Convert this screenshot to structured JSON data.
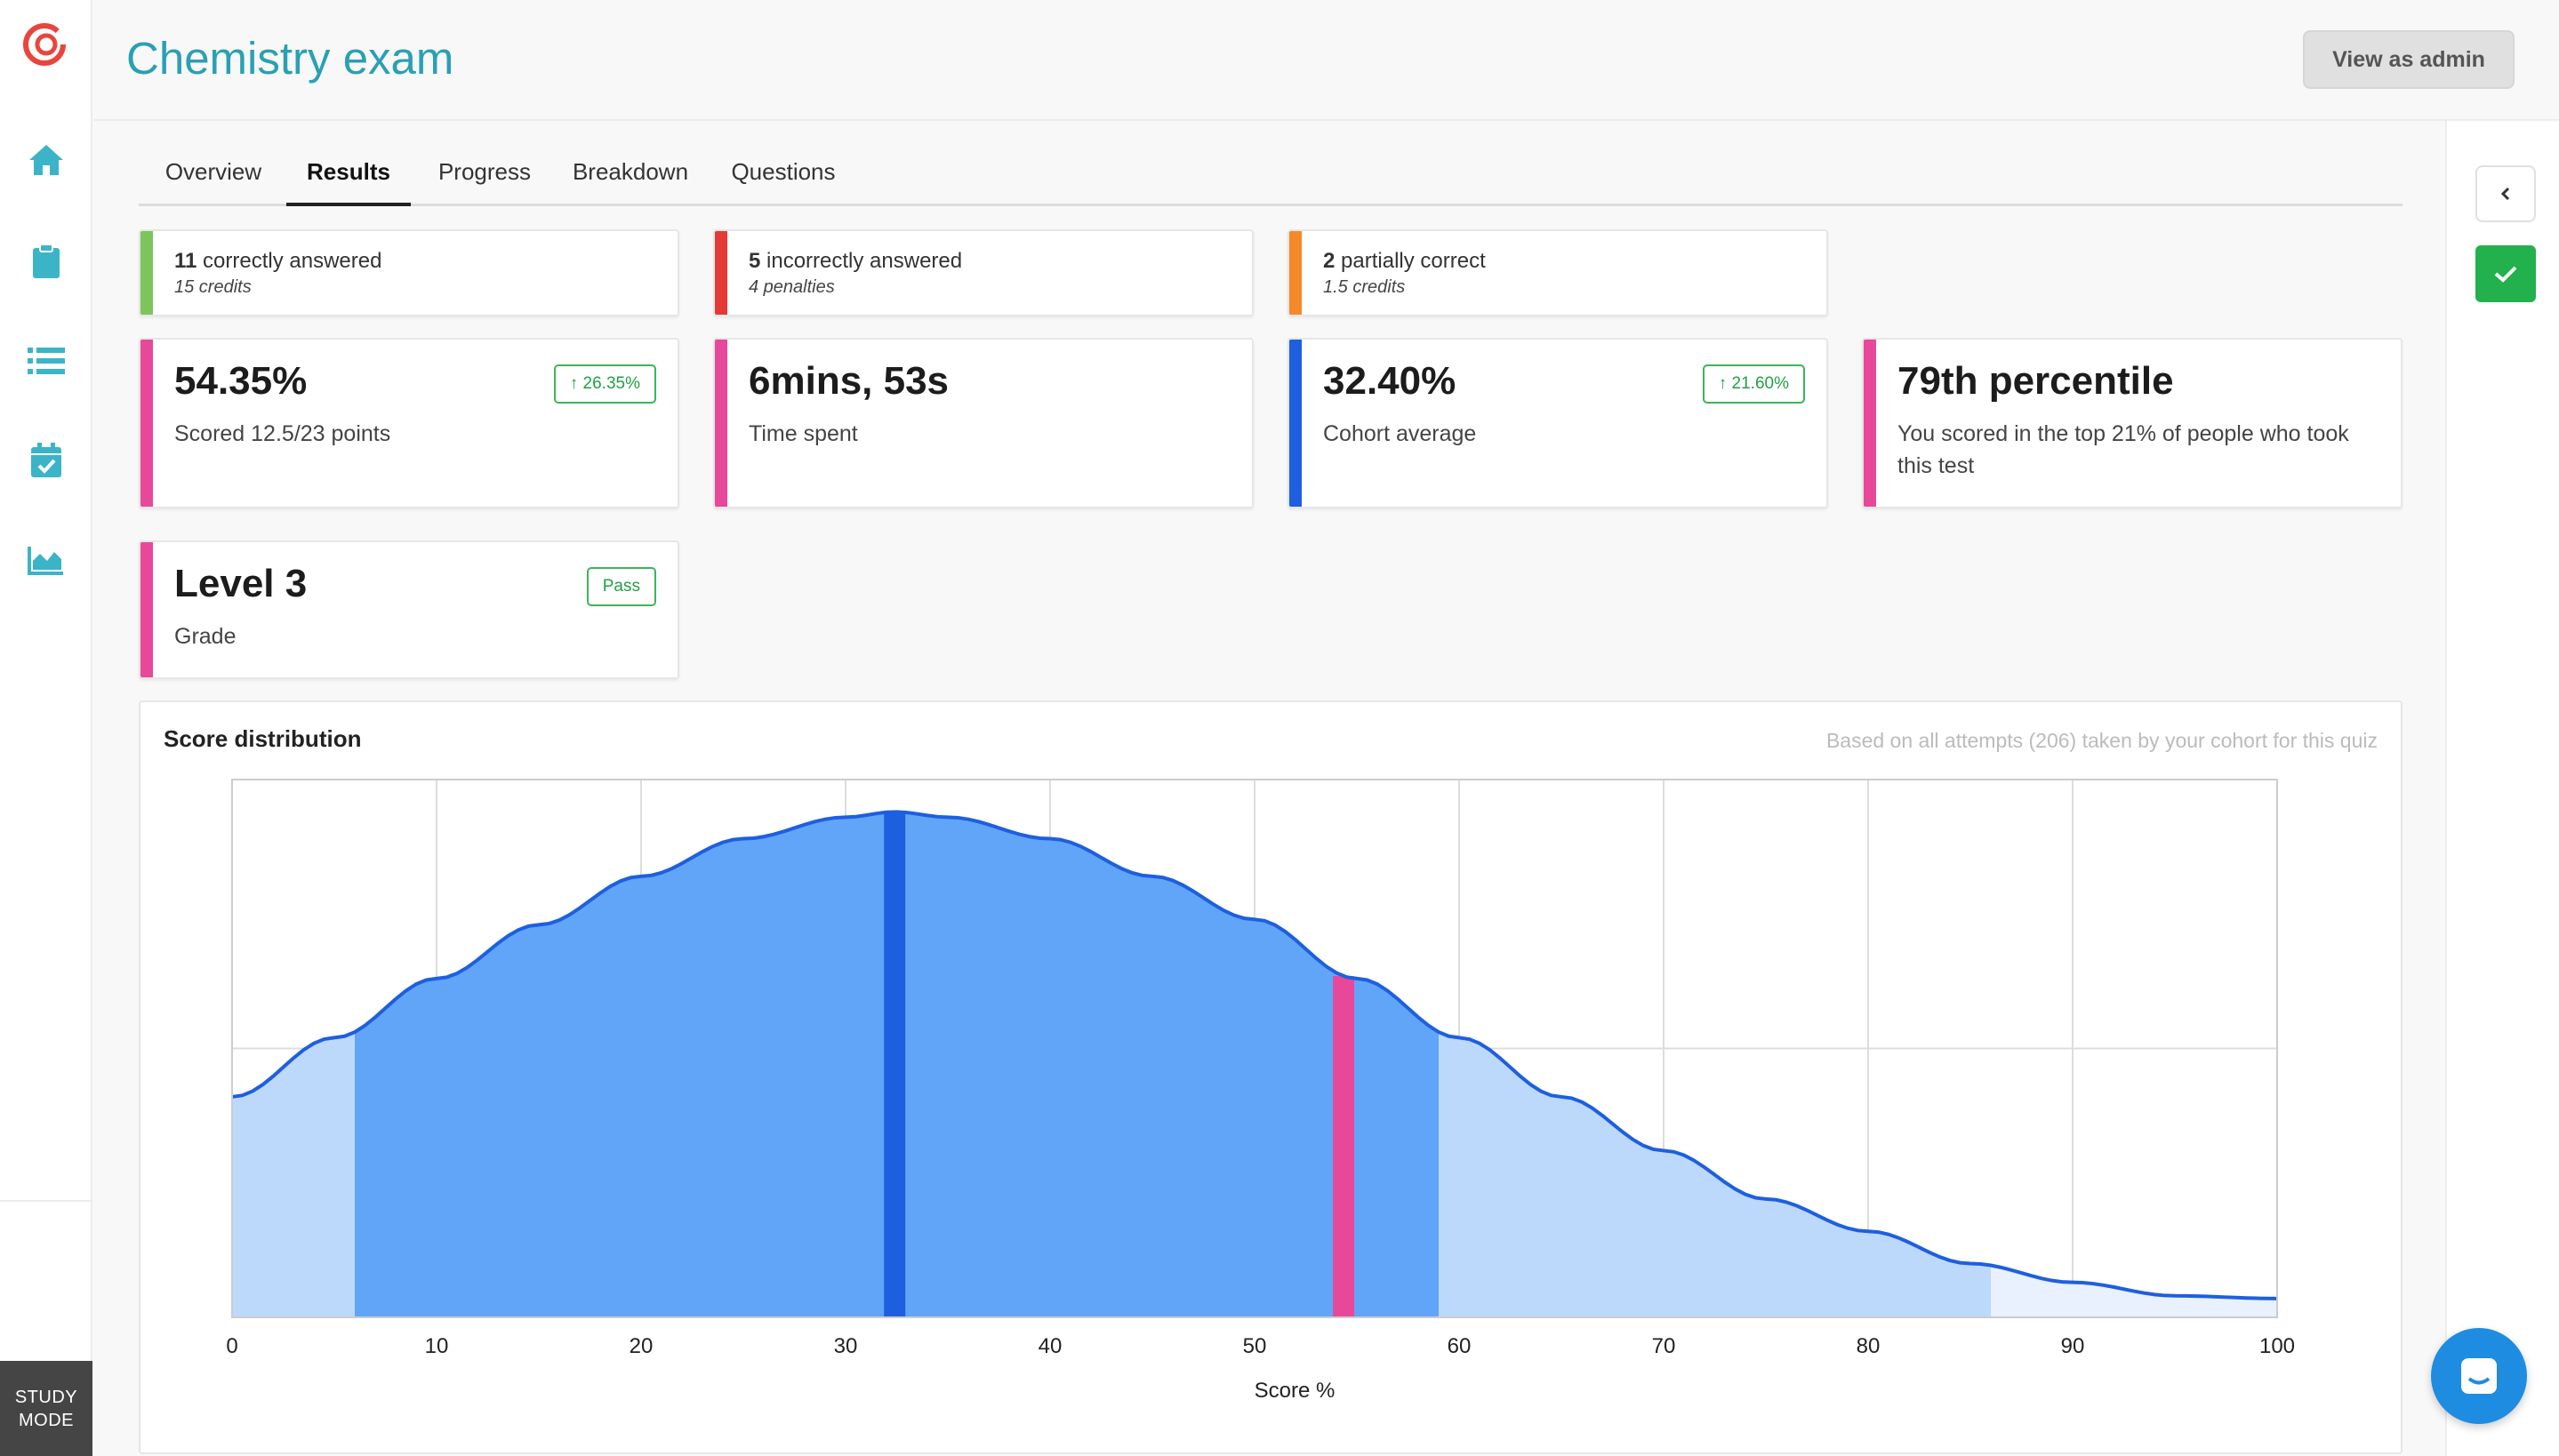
{
  "app": {
    "title": "Chemistry exam",
    "admin_button": "View as admin",
    "study_mode_line1": "STUDY",
    "study_mode_line2": "MODE"
  },
  "sidebar": {
    "icons": [
      "logo-icon",
      "home-icon",
      "clipboard-icon",
      "list-icon",
      "calendar-check-icon",
      "area-chart-icon"
    ]
  },
  "tabs": [
    {
      "label": "Overview",
      "active": false
    },
    {
      "label": "Results",
      "active": true
    },
    {
      "label": "Progress",
      "active": false
    },
    {
      "label": "Breakdown",
      "active": false
    },
    {
      "label": "Questions",
      "active": false
    }
  ],
  "summary": [
    {
      "count": "11",
      "label": " correctly answered",
      "detail": "15 credits",
      "color": "#7dc45a"
    },
    {
      "count": "5",
      "label": " incorrectly answered",
      "detail": "4 penalties",
      "color": "#e53935"
    },
    {
      "count": "2",
      "label": " partially correct",
      "detail": "1.5 credits",
      "color": "#f5892a"
    }
  ],
  "stats": [
    {
      "value": "54.35%",
      "label": "Scored 12.5/23 points",
      "badge": "↑ 26.35%",
      "color": "#e8489a"
    },
    {
      "value": "6mins, 53s",
      "label": "Time spent",
      "color": "#e8489a"
    },
    {
      "value": "32.40%",
      "label": "Cohort average",
      "badge": "↑ 21.60%",
      "color": "#1e5fe0"
    },
    {
      "value": "79th percentile",
      "label": "You scored in the top 21% of people who took this test",
      "color": "#e8489a"
    },
    {
      "value": "Level 3",
      "label": "Grade",
      "badge": "Pass",
      "color": "#e8489a"
    }
  ],
  "colors": {
    "accent": "#2aa0b3",
    "curve": "#1e5fe0",
    "fill_dark": "#60a5f8",
    "fill_light": "#bcd9fb",
    "fill_lightest": "#e8f1fd",
    "your_score": "#e8489a",
    "cohort_avg": "#1e5fe0",
    "success": "#22b14c"
  },
  "chart_data": {
    "type": "area",
    "title": "Score distribution",
    "note": "Based on all attempts (206) taken by your cohort for this quiz",
    "xlabel": "Score %",
    "ylabel": "",
    "xlim": [
      0,
      100
    ],
    "ylim": [
      0,
      1
    ],
    "xticks": [
      "0",
      "10",
      "20",
      "30",
      "40",
      "50",
      "60",
      "70",
      "80",
      "90",
      "100"
    ],
    "grid": true,
    "x": [
      0,
      5,
      10,
      15,
      20,
      25,
      30,
      32.4,
      35,
      40,
      45,
      50,
      55,
      60,
      65,
      70,
      75,
      80,
      85,
      90,
      95,
      100
    ],
    "y": [
      0.41,
      0.52,
      0.63,
      0.73,
      0.82,
      0.89,
      0.93,
      0.94,
      0.93,
      0.89,
      0.82,
      0.74,
      0.63,
      0.52,
      0.41,
      0.31,
      0.22,
      0.16,
      0.1,
      0.065,
      0.04,
      0.035
    ],
    "bands": [
      {
        "from": 0,
        "to": 6,
        "shade": "light"
      },
      {
        "from": 6,
        "to": 59,
        "shade": "dark"
      },
      {
        "from": 59,
        "to": 86,
        "shade": "light"
      },
      {
        "from": 86,
        "to": 100,
        "shade": "lightest"
      }
    ],
    "markers": [
      {
        "name": "cohort-average",
        "x": 32.4,
        "color": "#1e5fe0"
      },
      {
        "name": "your-score",
        "x": 54.35,
        "color": "#e8489a"
      }
    ]
  }
}
